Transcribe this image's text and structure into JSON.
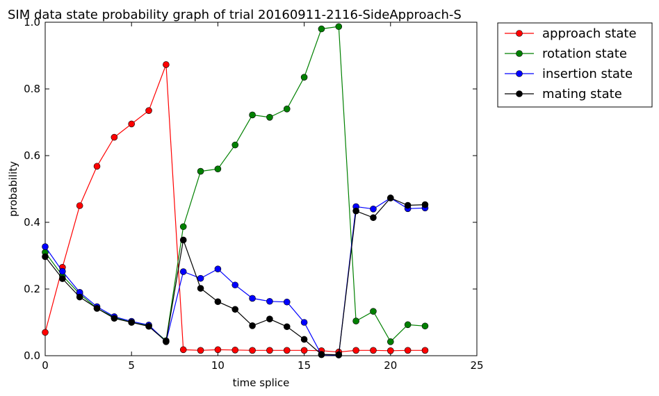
{
  "chart_data": {
    "type": "line",
    "title": "SIM data state probability graph of trial 20160911-2116-SideApproach-S",
    "xlabel": "time splice",
    "ylabel": "probability",
    "xlim": [
      0,
      25
    ],
    "ylim": [
      0,
      1.0
    ],
    "xticks": [
      0,
      5,
      10,
      15,
      20,
      25
    ],
    "yticks": [
      0.0,
      0.2,
      0.4,
      0.6,
      0.8,
      1.0
    ],
    "ytick_labels": [
      "0.0",
      "0.2",
      "0.4",
      "0.6",
      "0.8",
      "1.0"
    ],
    "grid": false,
    "legend_position": "outside-top-right",
    "x": [
      0,
      1,
      2,
      3,
      4,
      5,
      6,
      7,
      8,
      9,
      10,
      11,
      12,
      13,
      14,
      15,
      16,
      17,
      18,
      19,
      20,
      21,
      22
    ],
    "series": [
      {
        "name": "approach state",
        "color": "#ff0000",
        "values": [
          0.07,
          0.265,
          0.45,
          0.568,
          0.655,
          0.695,
          0.735,
          0.873,
          0.018,
          0.016,
          0.018,
          0.017,
          0.016,
          0.016,
          0.016,
          0.016,
          0.015,
          0.011,
          0.016,
          0.016,
          0.015,
          0.016,
          0.016
        ]
      },
      {
        "name": "rotation state",
        "color": "#008000",
        "values": [
          0.31,
          0.24,
          0.185,
          0.142,
          0.115,
          0.1,
          0.09,
          0.045,
          0.387,
          0.553,
          0.56,
          0.632,
          0.722,
          0.715,
          0.74,
          0.835,
          0.98,
          0.987,
          0.104,
          0.133,
          0.042,
          0.093,
          0.089
        ]
      },
      {
        "name": "insertion state",
        "color": "#0000ff",
        "values": [
          0.327,
          0.253,
          0.19,
          0.147,
          0.117,
          0.103,
          0.092,
          0.042,
          0.252,
          0.232,
          0.26,
          0.212,
          0.172,
          0.163,
          0.161,
          0.1,
          0.003,
          0.002,
          0.447,
          0.44,
          0.473,
          0.441,
          0.443
        ]
      },
      {
        "name": "mating state",
        "color": "#000000",
        "values": [
          0.297,
          0.231,
          0.176,
          0.142,
          0.112,
          0.1,
          0.088,
          0.043,
          0.347,
          0.202,
          0.162,
          0.139,
          0.09,
          0.11,
          0.087,
          0.049,
          0.004,
          0.003,
          0.434,
          0.414,
          0.473,
          0.451,
          0.453
        ]
      }
    ]
  }
}
